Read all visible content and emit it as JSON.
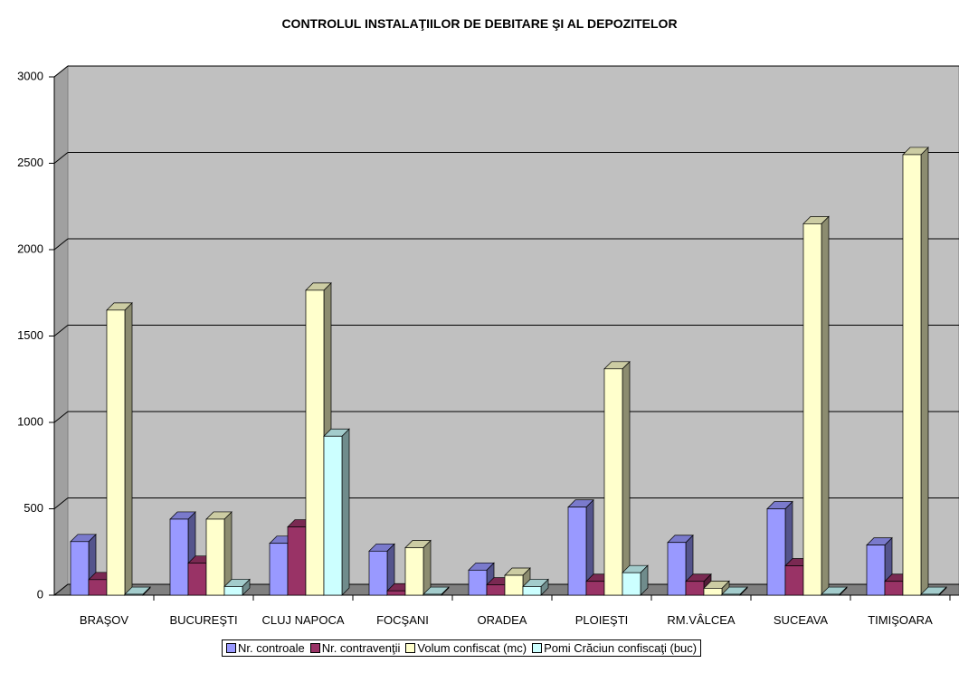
{
  "chart_data": {
    "type": "bar",
    "title": "CONTROLUL INSTALAŢIILOR DE DEBITARE ŞI AL DEPOZITELOR",
    "categories": [
      "BRAŞOV",
      "BUCUREŞTI",
      "CLUJ NAPOCA",
      "FOCŞANI",
      "ORADEA",
      "PLOIEŞTI",
      "RM.VÂLCEA",
      "SUCEAVA",
      "TIMIŞOARA"
    ],
    "series": [
      {
        "name": "Nr. controale",
        "color": "#9999ff",
        "values": [
          310,
          440,
          300,
          255,
          145,
          510,
          305,
          500,
          290
        ]
      },
      {
        "name": "Nr. contravenţii",
        "color": "#993366",
        "values": [
          90,
          185,
          395,
          25,
          60,
          80,
          80,
          170,
          80
        ]
      },
      {
        "name": "Volum confiscat (mc)",
        "color": "#ffffcc",
        "values": [
          1650,
          440,
          1765,
          275,
          115,
          1310,
          40,
          2150,
          2550
        ]
      },
      {
        "name": "Pomi Crăciun confiscaţi (buc)",
        "color": "#ccffff",
        "values": [
          5,
          50,
          920,
          5,
          50,
          130,
          5,
          5,
          5
        ]
      }
    ],
    "ylim": [
      0,
      3000
    ],
    "yticks": [
      0,
      500,
      1000,
      1500,
      2000,
      2500,
      3000
    ],
    "grid": true,
    "legend": "bottom"
  }
}
